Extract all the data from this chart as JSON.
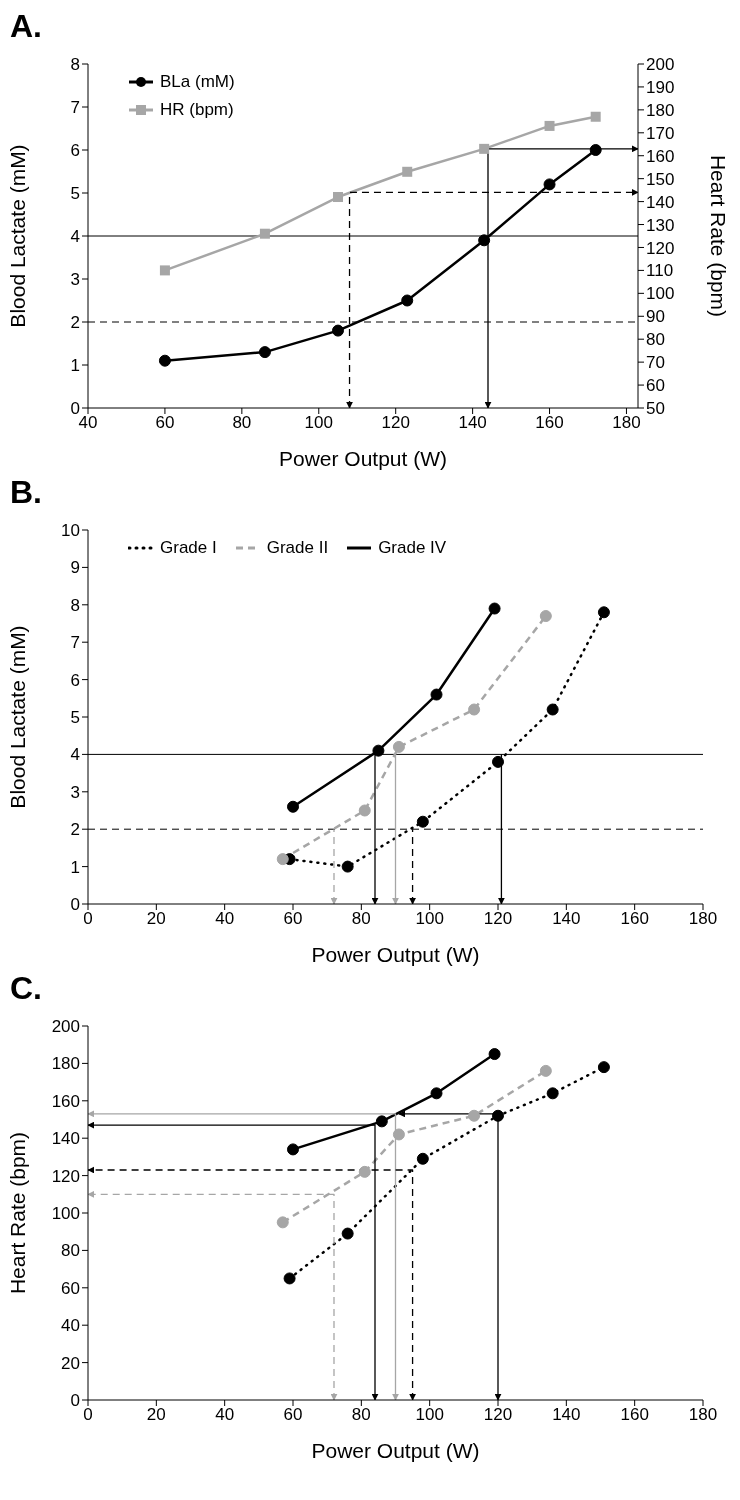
{
  "chart_data": [
    {
      "type": "line",
      "title": "A.",
      "xlabel": "Power Output (W)",
      "ylabel": "Blood Lactate (mM)",
      "y2label": "Heart  Rate (bpm)",
      "xlim": [
        40,
        183
      ],
      "xticks": [
        40,
        60,
        80,
        100,
        120,
        140,
        160,
        180
      ],
      "ylim": [
        0,
        8
      ],
      "yticks": [
        0,
        1,
        2,
        3,
        4,
        5,
        6,
        7,
        8
      ],
      "y2lim": [
        50,
        200
      ],
      "y2ticks": [
        50,
        60,
        70,
        80,
        90,
        100,
        110,
        120,
        130,
        140,
        150,
        160,
        170,
        180,
        190,
        200
      ],
      "legend": "top left",
      "grid": false,
      "series": [
        {
          "name": "BLa (mM)",
          "color": "#000000",
          "x": [
            60,
            86,
            105,
            123,
            143,
            160,
            172
          ],
          "values": [
            1.1,
            1.3,
            1.8,
            2.5,
            3.9,
            5.2,
            6.0
          ],
          "marker": "circle",
          "line_style": "solid"
        },
        {
          "name": "HR (bpm)",
          "color": "#a6a6a6",
          "x": [
            60,
            86,
            105,
            123,
            143,
            160,
            172
          ],
          "values": [
            110,
            126,
            142,
            153,
            163,
            173,
            177
          ],
          "axis": "y2",
          "marker": "square",
          "line_style": "solid"
        },
        {
          "color": "#000000",
          "x": [
            108,
            108,
            183
          ],
          "values": [
            50,
            144,
            144
          ],
          "axis": "y2",
          "marker": "none",
          "line_style": "dashed"
        },
        {
          "color": "#000000",
          "x": [
            144,
            144,
            183
          ],
          "values": [
            50,
            163,
            163
          ],
          "axis": "y2",
          "marker": "none",
          "line_style": "solid"
        }
      ],
      "ref_lines": [
        {
          "axis": "y",
          "value": 4,
          "line_style": "solid",
          "color": "#000000"
        },
        {
          "axis": "y",
          "value": 2,
          "line_style": "dashed",
          "color": "#000000"
        }
      ]
    },
    {
      "type": "line",
      "title": "B.",
      "xlabel": "Power Output (W)",
      "ylabel": "Blood Lactate (mM)",
      "xlim": [
        0,
        180
      ],
      "xticks": [
        0,
        20,
        40,
        60,
        80,
        100,
        120,
        140,
        160,
        180
      ],
      "ylim": [
        0,
        10
      ],
      "yticks": [
        0,
        1,
        2,
        3,
        4,
        5,
        6,
        7,
        8,
        9,
        10
      ],
      "legend": "top left",
      "grid": false,
      "series": [
        {
          "name": "Grade I",
          "color": "#000000",
          "x": [
            59,
            76,
            98,
            120,
            136,
            151
          ],
          "values": [
            1.2,
            1.0,
            2.2,
            3.8,
            5.2,
            7.8
          ],
          "marker": "circle",
          "line_style": "dotted"
        },
        {
          "name": "Grade II",
          "color": "#a6a6a6",
          "x": [
            57,
            81,
            91,
            113,
            134
          ],
          "values": [
            1.2,
            2.5,
            4.2,
            5.2,
            7.7
          ],
          "marker": "circle",
          "line_style": "dashed"
        },
        {
          "name": "Grade IV",
          "color": "#000000",
          "x": [
            60,
            85,
            102,
            119
          ],
          "values": [
            2.6,
            4.1,
            5.6,
            7.9
          ],
          "marker": "circle",
          "line_style": "solid"
        },
        {
          "color": "#a6a6a6",
          "x": [
            72,
            72
          ],
          "values": [
            0,
            2
          ],
          "marker": "none",
          "line_style": "dashed"
        },
        {
          "color": "#000000",
          "x": [
            84,
            84
          ],
          "values": [
            0,
            4
          ],
          "marker": "none",
          "line_style": "solid"
        },
        {
          "color": "#a6a6a6",
          "x": [
            90,
            90
          ],
          "values": [
            0,
            4
          ],
          "marker": "none",
          "line_style": "solid"
        },
        {
          "color": "#000000",
          "x": [
            95,
            95
          ],
          "values": [
            0,
            2
          ],
          "marker": "none",
          "line_style": "dashed"
        },
        {
          "color": "#000000",
          "x": [
            121,
            121
          ],
          "values": [
            0,
            4
          ],
          "marker": "none",
          "line_style": "solid"
        }
      ],
      "ref_lines": [
        {
          "axis": "y",
          "value": 4,
          "line_style": "solid",
          "color": "#000000"
        },
        {
          "axis": "y",
          "value": 2,
          "line_style": "dashed",
          "color": "#000000"
        }
      ]
    },
    {
      "type": "line",
      "title": "C.",
      "xlabel": "Power Output (W)",
      "ylabel": "Heart  Rate (bpm)",
      "xlim": [
        0,
        180
      ],
      "xticks": [
        0,
        20,
        40,
        60,
        80,
        100,
        120,
        140,
        160,
        180
      ],
      "ylim": [
        0,
        200
      ],
      "yticks": [
        0,
        20,
        40,
        60,
        80,
        100,
        120,
        140,
        160,
        180,
        200
      ],
      "grid": false,
      "series": [
        {
          "color": "#000000",
          "x": [
            59,
            76,
            98,
            120,
            136,
            151
          ],
          "values": [
            65,
            89,
            129,
            152,
            164,
            178
          ],
          "marker": "circle",
          "line_style": "dotted"
        },
        {
          "color": "#a6a6a6",
          "x": [
            57,
            81,
            91,
            113,
            134
          ],
          "values": [
            95,
            122,
            142,
            152,
            176
          ],
          "marker": "circle",
          "line_style": "dashed"
        },
        {
          "color": "#000000",
          "x": [
            60,
            86,
            102,
            119
          ],
          "values": [
            134,
            149,
            164,
            185
          ],
          "marker": "circle",
          "line_style": "solid"
        },
        {
          "color": "#a6a6a6",
          "x": [
            72,
            72,
            0
          ],
          "values": [
            0,
            110,
            110
          ],
          "marker": "none",
          "line_style": "dashed"
        },
        {
          "color": "#000000",
          "x": [
            84,
            84,
            0
          ],
          "values": [
            0,
            147,
            147
          ],
          "marker": "none",
          "line_style": "solid"
        },
        {
          "color": "#a6a6a6",
          "x": [
            90,
            90,
            0
          ],
          "values": [
            0,
            153,
            153
          ],
          "marker": "none",
          "line_style": "solid"
        },
        {
          "color": "#000000",
          "x": [
            95,
            95,
            0
          ],
          "values": [
            0,
            123,
            123
          ],
          "marker": "none",
          "line_style": "dashed"
        },
        {
          "color": "#000000",
          "x": [
            120,
            120,
            91
          ],
          "values": [
            0,
            153,
            153
          ],
          "marker": "none",
          "line_style": "solid"
        }
      ]
    }
  ]
}
